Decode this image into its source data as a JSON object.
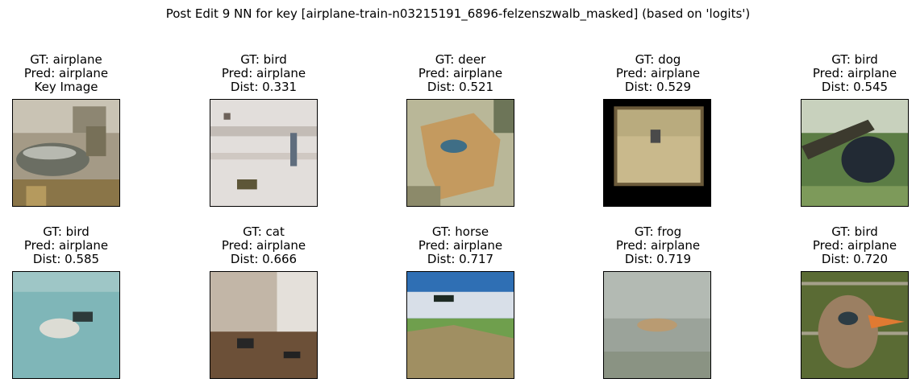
{
  "title": "Post Edit 9 NN for key [airplane-train-n03215191_6896-felzenszwalb_masked] (based on 'logits')",
  "panels": [
    {
      "gt": "GT: airplane",
      "pred": "Pred: airplane",
      "extra": "Key Image"
    },
    {
      "gt": "GT: bird",
      "pred": "Pred: airplane",
      "extra": "Dist: 0.331"
    },
    {
      "gt": "GT: deer",
      "pred": "Pred: airplane",
      "extra": "Dist: 0.521"
    },
    {
      "gt": "GT: dog",
      "pred": "Pred: airplane",
      "extra": "Dist: 0.529"
    },
    {
      "gt": "GT: bird",
      "pred": "Pred: airplane",
      "extra": "Dist: 0.545"
    },
    {
      "gt": "GT: bird",
      "pred": "Pred: airplane",
      "extra": "Dist: 0.585"
    },
    {
      "gt": "GT: cat",
      "pred": "Pred: airplane",
      "extra": "Dist: 0.666"
    },
    {
      "gt": "GT: horse",
      "pred": "Pred: airplane",
      "extra": "Dist: 0.717"
    },
    {
      "gt": "GT: frog",
      "pred": "Pred: airplane",
      "extra": "Dist: 0.719"
    },
    {
      "gt": "GT: bird",
      "pred": "Pred: airplane",
      "extra": "Dist: 0.720"
    }
  ]
}
